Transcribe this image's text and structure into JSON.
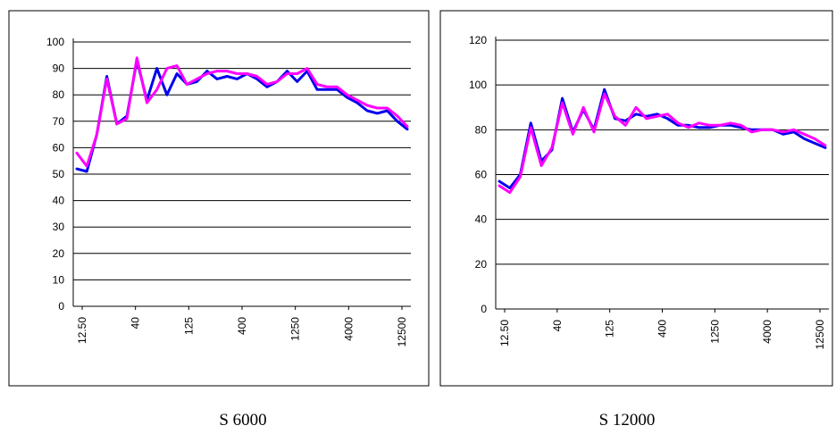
{
  "charts": [
    {
      "caption": "S 6000",
      "chart_data": {
        "type": "line",
        "title": "",
        "xlabel": "",
        "ylabel": "",
        "ylim": [
          0,
          100
        ],
        "yticks": [
          0,
          10,
          20,
          30,
          40,
          50,
          60,
          70,
          80,
          90,
          100
        ],
        "x_tick_labels": [
          "12.50",
          "40",
          "125",
          "400",
          "1250",
          "4000",
          "12500"
        ],
        "grid": true,
        "legend": "none",
        "series": [
          {
            "color": "#0000ee",
            "values": [
              52,
              51,
              65,
              87,
              69,
              72,
              93,
              78,
              90,
              80,
              88,
              84,
              85,
              89,
              86,
              87,
              86,
              88,
              86,
              83,
              85,
              89,
              85,
              89,
              82,
              82,
              82,
              79,
              77,
              74,
              73,
              74,
              70,
              67
            ]
          },
          {
            "color": "#ff00ff",
            "values": [
              58,
              53,
              65,
              86,
              69,
              71,
              94,
              77,
              82,
              90,
              91,
              84,
              86,
              88,
              89,
              89,
              88,
              88,
              87,
              84,
              85,
              88,
              88,
              90,
              84,
              83,
              83,
              80,
              78,
              76,
              75,
              75,
              72,
              68
            ]
          }
        ]
      }
    },
    {
      "caption": "S 12000",
      "chart_data": {
        "type": "line",
        "title": "",
        "xlabel": "",
        "ylabel": "",
        "ylim": [
          0,
          120
        ],
        "yticks": [
          0,
          20,
          40,
          60,
          80,
          100,
          120
        ],
        "x_tick_labels": [
          "12.50",
          "40",
          "125",
          "400",
          "1250",
          "4000",
          "12500"
        ],
        "grid": true,
        "legend": "none",
        "series": [
          {
            "color": "#0000ee",
            "values": [
              57,
              54,
              60,
              83,
              66,
              71,
              94,
              79,
              89,
              80,
              98,
              85,
              84,
              87,
              86,
              87,
              85,
              82,
              82,
              81,
              81,
              82,
              82,
              81,
              80,
              80,
              80,
              78,
              79,
              76,
              74,
              72
            ]
          },
          {
            "color": "#ff00ff",
            "values": [
              55,
              52,
              59,
              81,
              64,
              72,
              92,
              78,
              90,
              79,
              96,
              86,
              82,
              90,
              85,
              86,
              87,
              83,
              81,
              83,
              82,
              82,
              83,
              82,
              79,
              80,
              80,
              79,
              80,
              78,
              76,
              73
            ]
          }
        ]
      }
    }
  ]
}
